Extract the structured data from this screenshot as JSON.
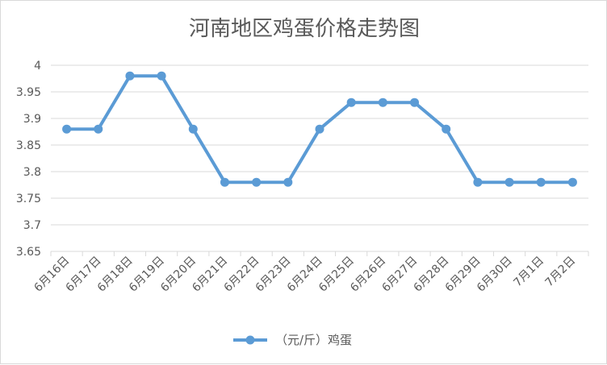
{
  "chart_data": {
    "type": "line",
    "title": "河南地区鸡蛋价格走势图",
    "categories": [
      "6月16日",
      "6月17日",
      "6月18日",
      "6月19日",
      "6月20日",
      "6月21日",
      "6月22日",
      "6月23日",
      "6月24日",
      "6月25日",
      "6月26日",
      "6月27日",
      "6月28日",
      "6月29日",
      "6月30日",
      "7月1日",
      "7月2日"
    ],
    "series": [
      {
        "name": "（元/斤）鸡蛋",
        "values": [
          3.88,
          3.88,
          3.98,
          3.98,
          3.88,
          3.78,
          3.78,
          3.78,
          3.88,
          3.93,
          3.93,
          3.93,
          3.88,
          3.78,
          3.78,
          3.78,
          3.78
        ]
      }
    ],
    "ylim": [
      3.65,
      4
    ],
    "yticks": [
      "3.65",
      "3.7",
      "3.75",
      "3.8",
      "3.85",
      "3.9",
      "3.95",
      "4"
    ],
    "xlabel": "",
    "ylabel": "",
    "grid": true,
    "legend_position": "bottom",
    "colors": {
      "line": "#5b9bd5",
      "grid": "#d9d9d9",
      "text": "#595959"
    }
  }
}
